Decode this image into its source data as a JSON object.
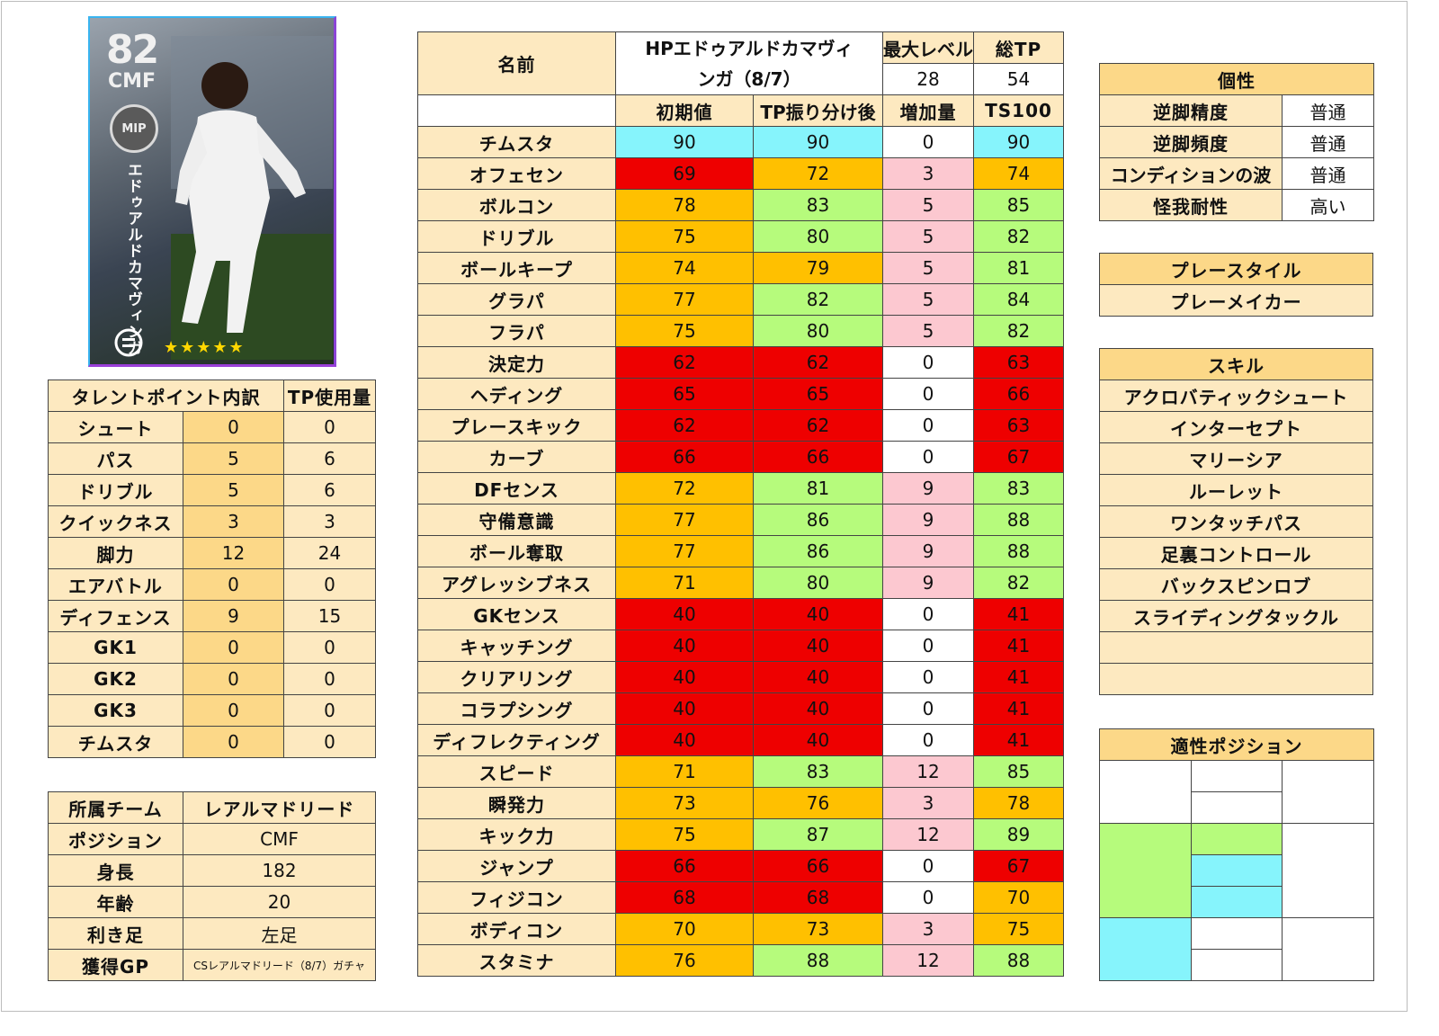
{
  "card": {
    "rating": "82",
    "position": "CMF",
    "badge": "MIP",
    "name_vertical": "エドゥアルドカマヴィンガ",
    "stars": "★★★★★",
    "logo_icon": "efootball-logo-icon"
  },
  "talent": {
    "header": [
      "タレントポイント内訳",
      "TP使用量"
    ],
    "rows": [
      {
        "label": "シュート",
        "points": "0",
        "tp": "0"
      },
      {
        "label": "パス",
        "points": "5",
        "tp": "6"
      },
      {
        "label": "ドリブル",
        "points": "5",
        "tp": "6"
      },
      {
        "label": "クイックネス",
        "points": "3",
        "tp": "3"
      },
      {
        "label": "脚力",
        "points": "12",
        "tp": "24"
      },
      {
        "label": "エアバトル",
        "points": "0",
        "tp": "0"
      },
      {
        "label": "ディフェンス",
        "points": "9",
        "tp": "15"
      },
      {
        "label": "GK1",
        "points": "0",
        "tp": "0"
      },
      {
        "label": "GK2",
        "points": "0",
        "tp": "0"
      },
      {
        "label": "GK3",
        "points": "0",
        "tp": "0"
      },
      {
        "label": "チムスタ",
        "points": "0",
        "tp": "0"
      }
    ]
  },
  "profile": {
    "rows": [
      {
        "label": "所属チーム",
        "value": "レアルマドリード"
      },
      {
        "label": "ポジション",
        "value": "CMF"
      },
      {
        "label": "身長",
        "value": "182"
      },
      {
        "label": "年齢",
        "value": "20"
      },
      {
        "label": "利き足",
        "value": "左足"
      },
      {
        "label": "獲得GP",
        "value": "CSレアルマドリード（8/7）ガチャ"
      }
    ]
  },
  "stats": {
    "name_label": "名前",
    "name_value_line1": "HPエドゥアルドカマヴィ",
    "name_value_line2": "ンガ（8/7）",
    "max_level_label": "最大レベル",
    "max_level_value": "28",
    "total_tp_label": "総TP",
    "total_tp_value": "54",
    "columns": [
      "",
      "初期値",
      "TP振り分け後",
      "増加量",
      "TS100"
    ],
    "rows": [
      {
        "label": "チムスタ",
        "init": "90",
        "after": "90",
        "inc": "0",
        "ts": "90",
        "ci": "cyan",
        "ca": "cyan",
        "cn": "white",
        "ct": "cyan"
      },
      {
        "label": "オフェセン",
        "init": "69",
        "after": "72",
        "inc": "3",
        "ts": "74",
        "ci": "red",
        "ca": "orange",
        "cn": "pink",
        "ct": "orange"
      },
      {
        "label": "ボルコン",
        "init": "78",
        "after": "83",
        "inc": "5",
        "ts": "85",
        "ci": "orange",
        "ca": "green",
        "cn": "pink",
        "ct": "green"
      },
      {
        "label": "ドリブル",
        "init": "75",
        "after": "80",
        "inc": "5",
        "ts": "82",
        "ci": "orange",
        "ca": "green",
        "cn": "pink",
        "ct": "green"
      },
      {
        "label": "ボールキープ",
        "init": "74",
        "after": "79",
        "inc": "5",
        "ts": "81",
        "ci": "orange",
        "ca": "orange",
        "cn": "pink",
        "ct": "green"
      },
      {
        "label": "グラパ",
        "init": "77",
        "after": "82",
        "inc": "5",
        "ts": "84",
        "ci": "orange",
        "ca": "green",
        "cn": "pink",
        "ct": "green"
      },
      {
        "label": "フラパ",
        "init": "75",
        "after": "80",
        "inc": "5",
        "ts": "82",
        "ci": "orange",
        "ca": "green",
        "cn": "pink",
        "ct": "green"
      },
      {
        "label": "決定力",
        "init": "62",
        "after": "62",
        "inc": "0",
        "ts": "63",
        "ci": "red",
        "ca": "red",
        "cn": "white",
        "ct": "red"
      },
      {
        "label": "ヘディング",
        "init": "65",
        "after": "65",
        "inc": "0",
        "ts": "66",
        "ci": "red",
        "ca": "red",
        "cn": "white",
        "ct": "red"
      },
      {
        "label": "プレースキック",
        "init": "62",
        "after": "62",
        "inc": "0",
        "ts": "63",
        "ci": "red",
        "ca": "red",
        "cn": "white",
        "ct": "red"
      },
      {
        "label": "カーブ",
        "init": "66",
        "after": "66",
        "inc": "0",
        "ts": "67",
        "ci": "red",
        "ca": "red",
        "cn": "white",
        "ct": "red"
      },
      {
        "label": "DFセンス",
        "init": "72",
        "after": "81",
        "inc": "9",
        "ts": "83",
        "ci": "orange",
        "ca": "green",
        "cn": "pink",
        "ct": "green"
      },
      {
        "label": "守備意識",
        "init": "77",
        "after": "86",
        "inc": "9",
        "ts": "88",
        "ci": "orange",
        "ca": "green",
        "cn": "pink",
        "ct": "green"
      },
      {
        "label": "ボール奪取",
        "init": "77",
        "after": "86",
        "inc": "9",
        "ts": "88",
        "ci": "orange",
        "ca": "green",
        "cn": "pink",
        "ct": "green"
      },
      {
        "label": "アグレッシブネス",
        "init": "71",
        "after": "80",
        "inc": "9",
        "ts": "82",
        "ci": "orange",
        "ca": "green",
        "cn": "pink",
        "ct": "green"
      },
      {
        "label": "GKセンス",
        "init": "40",
        "after": "40",
        "inc": "0",
        "ts": "41",
        "ci": "red",
        "ca": "red",
        "cn": "white",
        "ct": "red"
      },
      {
        "label": "キャッチング",
        "init": "40",
        "after": "40",
        "inc": "0",
        "ts": "41",
        "ci": "red",
        "ca": "red",
        "cn": "white",
        "ct": "red"
      },
      {
        "label": "クリアリング",
        "init": "40",
        "after": "40",
        "inc": "0",
        "ts": "41",
        "ci": "red",
        "ca": "red",
        "cn": "white",
        "ct": "red"
      },
      {
        "label": "コラプシング",
        "init": "40",
        "after": "40",
        "inc": "0",
        "ts": "41",
        "ci": "red",
        "ca": "red",
        "cn": "white",
        "ct": "red"
      },
      {
        "label": "ディフレクティング",
        "init": "40",
        "after": "40",
        "inc": "0",
        "ts": "41",
        "ci": "red",
        "ca": "red",
        "cn": "white",
        "ct": "red"
      },
      {
        "label": "スピード",
        "init": "71",
        "after": "83",
        "inc": "12",
        "ts": "85",
        "ci": "orange",
        "ca": "green",
        "cn": "pink",
        "ct": "green"
      },
      {
        "label": "瞬発力",
        "init": "73",
        "after": "76",
        "inc": "3",
        "ts": "78",
        "ci": "orange",
        "ca": "orange",
        "cn": "pink",
        "ct": "orange"
      },
      {
        "label": "キック力",
        "init": "75",
        "after": "87",
        "inc": "12",
        "ts": "89",
        "ci": "orange",
        "ca": "green",
        "cn": "pink",
        "ct": "green"
      },
      {
        "label": "ジャンプ",
        "init": "66",
        "after": "66",
        "inc": "0",
        "ts": "67",
        "ci": "red",
        "ca": "red",
        "cn": "white",
        "ct": "red"
      },
      {
        "label": "フィジコン",
        "init": "68",
        "after": "68",
        "inc": "0",
        "ts": "70",
        "ci": "red",
        "ca": "red",
        "cn": "white",
        "ct": "orange"
      },
      {
        "label": "ボディコン",
        "init": "70",
        "after": "73",
        "inc": "3",
        "ts": "75",
        "ci": "orange",
        "ca": "orange",
        "cn": "pink",
        "ct": "orange"
      },
      {
        "label": "スタミナ",
        "init": "76",
        "after": "88",
        "inc": "12",
        "ts": "88",
        "ci": "orange",
        "ca": "green",
        "cn": "pink",
        "ct": "green"
      }
    ]
  },
  "personality": {
    "title": "個性",
    "rows": [
      {
        "label": "逆脚精度",
        "value": "普通"
      },
      {
        "label": "逆脚頻度",
        "value": "普通"
      },
      {
        "label": "コンディションの波",
        "value": "普通"
      },
      {
        "label": "怪我耐性",
        "value": "高い"
      }
    ]
  },
  "playstyle": {
    "title": "プレースタイル",
    "value": "プレーメイカー"
  },
  "skills": {
    "title": "スキル",
    "items": [
      "アクロバティックシュート",
      "インターセプト",
      "マリーシア",
      "ルーレット",
      "ワンタッチパス",
      "足裏コントロール",
      "バックスピンロブ",
      "スライディングタックル",
      "",
      ""
    ]
  },
  "positions": {
    "title": "適性ポジション",
    "colors": {
      "green": "#b6fb7c",
      "cyan": "#86f4fc"
    }
  }
}
